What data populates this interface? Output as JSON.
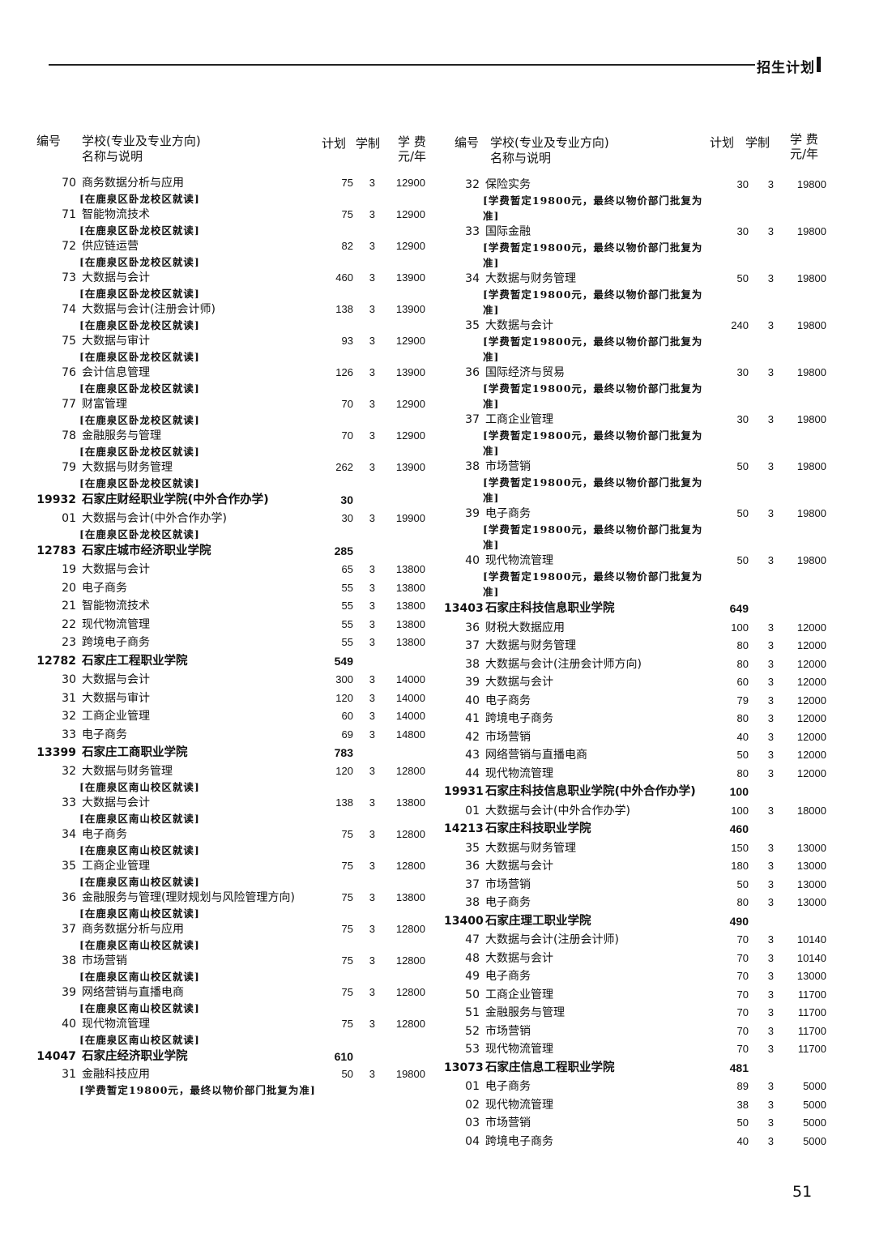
{
  "header": {
    "section_title": "招生计划"
  },
  "columns": {
    "code": "编号",
    "name_line1": "学校(专业及专业方向)",
    "name_line2": "名称与说明",
    "plan": "计划",
    "years": "学制",
    "fee_line1": "学 费",
    "fee_line2": "元/年"
  },
  "left_rows": [
    {
      "type": "item",
      "code": "70",
      "name": "商务数据分析与应用",
      "note": "[在鹿泉区卧龙校区就读]",
      "plan": "75",
      "years": "3",
      "fee": "12900"
    },
    {
      "type": "item",
      "code": "71",
      "name": "智能物流技术",
      "note": "[在鹿泉区卧龙校区就读]",
      "plan": "75",
      "years": "3",
      "fee": "12900"
    },
    {
      "type": "item",
      "code": "72",
      "name": "供应链运营",
      "note": "[在鹿泉区卧龙校区就读]",
      "plan": "82",
      "years": "3",
      "fee": "12900"
    },
    {
      "type": "item",
      "code": "73",
      "name": "大数据与会计",
      "note": "[在鹿泉区卧龙校区就读]",
      "plan": "460",
      "years": "3",
      "fee": "13900"
    },
    {
      "type": "item",
      "code": "74",
      "name": "大数据与会计(注册会计师)",
      "note": "[在鹿泉区卧龙校区就读]",
      "plan": "138",
      "years": "3",
      "fee": "13900"
    },
    {
      "type": "item",
      "code": "75",
      "name": "大数据与审计",
      "note": "[在鹿泉区卧龙校区就读]",
      "plan": "93",
      "years": "3",
      "fee": "12900"
    },
    {
      "type": "item",
      "code": "76",
      "name": "会计信息管理",
      "note": "[在鹿泉区卧龙校区就读]",
      "plan": "126",
      "years": "3",
      "fee": "13900"
    },
    {
      "type": "item",
      "code": "77",
      "name": "财富管理",
      "note": "[在鹿泉区卧龙校区就读]",
      "plan": "70",
      "years": "3",
      "fee": "12900"
    },
    {
      "type": "item",
      "code": "78",
      "name": "金融服务与管理",
      "note": "[在鹿泉区卧龙校区就读]",
      "plan": "70",
      "years": "3",
      "fee": "12900"
    },
    {
      "type": "item",
      "code": "79",
      "name": "大数据与财务管理",
      "note": "[在鹿泉区卧龙校区就读]",
      "plan": "262",
      "years": "3",
      "fee": "13900"
    },
    {
      "type": "school",
      "code": "19932",
      "name": "石家庄财经职业学院(中外合作办学)",
      "plan": "30"
    },
    {
      "type": "item",
      "code": "01",
      "name": "大数据与会计(中外合作办学)",
      "note": "[在鹿泉区卧龙校区就读]",
      "plan": "30",
      "years": "3",
      "fee": "19900"
    },
    {
      "type": "school",
      "code": "12783",
      "name": "石家庄城市经济职业学院",
      "plan": "285"
    },
    {
      "type": "item",
      "code": "19",
      "name": "大数据与会计",
      "plan": "65",
      "years": "3",
      "fee": "13800"
    },
    {
      "type": "item",
      "code": "20",
      "name": "电子商务",
      "plan": "55",
      "years": "3",
      "fee": "13800"
    },
    {
      "type": "item",
      "code": "21",
      "name": "智能物流技术",
      "plan": "55",
      "years": "3",
      "fee": "13800"
    },
    {
      "type": "item",
      "code": "22",
      "name": "现代物流管理",
      "plan": "55",
      "years": "3",
      "fee": "13800"
    },
    {
      "type": "item",
      "code": "23",
      "name": "跨境电子商务",
      "plan": "55",
      "years": "3",
      "fee": "13800"
    },
    {
      "type": "school",
      "code": "12782",
      "name": "石家庄工程职业学院",
      "plan": "549"
    },
    {
      "type": "item",
      "code": "30",
      "name": "大数据与会计",
      "plan": "300",
      "years": "3",
      "fee": "14000"
    },
    {
      "type": "item",
      "code": "31",
      "name": "大数据与审计",
      "plan": "120",
      "years": "3",
      "fee": "14000"
    },
    {
      "type": "item",
      "code": "32",
      "name": "工商企业管理",
      "plan": "60",
      "years": "3",
      "fee": "14000"
    },
    {
      "type": "item",
      "code": "33",
      "name": "电子商务",
      "plan": "69",
      "years": "3",
      "fee": "14800"
    },
    {
      "type": "school",
      "code": "13399",
      "name": "石家庄工商职业学院",
      "plan": "783"
    },
    {
      "type": "item",
      "code": "32",
      "name": "大数据与财务管理",
      "note": "[在鹿泉区南山校区就读]",
      "plan": "120",
      "years": "3",
      "fee": "12800"
    },
    {
      "type": "item",
      "code": "33",
      "name": "大数据与会计",
      "note": "[在鹿泉区南山校区就读]",
      "plan": "138",
      "years": "3",
      "fee": "13800"
    },
    {
      "type": "item",
      "code": "34",
      "name": "电子商务",
      "note": "[在鹿泉区南山校区就读]",
      "plan": "75",
      "years": "3",
      "fee": "12800"
    },
    {
      "type": "item",
      "code": "35",
      "name": "工商企业管理",
      "note": "[在鹿泉区南山校区就读]",
      "plan": "75",
      "years": "3",
      "fee": "12800"
    },
    {
      "type": "item",
      "code": "36",
      "name": "金融服务与管理(理财规划与风险管理方向)",
      "note": "[在鹿泉区南山校区就读]",
      "plan": "75",
      "years": "3",
      "fee": "13800"
    },
    {
      "type": "item",
      "code": "37",
      "name": "商务数据分析与应用",
      "note": "[在鹿泉区南山校区就读]",
      "plan": "75",
      "years": "3",
      "fee": "12800"
    },
    {
      "type": "item",
      "code": "38",
      "name": "市场营销",
      "note": "[在鹿泉区南山校区就读]",
      "plan": "75",
      "years": "3",
      "fee": "12800"
    },
    {
      "type": "item",
      "code": "39",
      "name": "网络营销与直播电商",
      "note": "[在鹿泉区南山校区就读]",
      "plan": "75",
      "years": "3",
      "fee": "12800"
    },
    {
      "type": "item",
      "code": "40",
      "name": "现代物流管理",
      "note": "[在鹿泉区南山校区就读]",
      "plan": "75",
      "years": "3",
      "fee": "12800"
    },
    {
      "type": "school",
      "code": "14047",
      "name": "石家庄经济职业学院",
      "plan": "610"
    },
    {
      "type": "item",
      "code": "31",
      "name": "金融科技应用",
      "note": "[学费暂定19800元，最终以物价部门批复为准]",
      "plan": "50",
      "years": "3",
      "fee": "19800"
    }
  ],
  "right_rows": [
    {
      "type": "item",
      "code": "32",
      "name": "保险实务",
      "note": "[学费暂定19800元，最终以物价部门批复为准]",
      "plan": "30",
      "years": "3",
      "fee": "19800"
    },
    {
      "type": "item",
      "code": "33",
      "name": "国际金融",
      "note": "[学费暂定19800元，最终以物价部门批复为准]",
      "plan": "30",
      "years": "3",
      "fee": "19800"
    },
    {
      "type": "item",
      "code": "34",
      "name": "大数据与财务管理",
      "note": "[学费暂定19800元，最终以物价部门批复为准]",
      "plan": "50",
      "years": "3",
      "fee": "19800"
    },
    {
      "type": "item",
      "code": "35",
      "name": "大数据与会计",
      "note": "[学费暂定19800元，最终以物价部门批复为准]",
      "plan": "240",
      "years": "3",
      "fee": "19800"
    },
    {
      "type": "item",
      "code": "36",
      "name": "国际经济与贸易",
      "note": "[学费暂定19800元，最终以物价部门批复为准]",
      "plan": "30",
      "years": "3",
      "fee": "19800"
    },
    {
      "type": "item",
      "code": "37",
      "name": "工商企业管理",
      "note": "[学费暂定19800元，最终以物价部门批复为准]",
      "plan": "30",
      "years": "3",
      "fee": "19800"
    },
    {
      "type": "item",
      "code": "38",
      "name": "市场营销",
      "note": "[学费暂定19800元，最终以物价部门批复为准]",
      "plan": "50",
      "years": "3",
      "fee": "19800"
    },
    {
      "type": "item",
      "code": "39",
      "name": "电子商务",
      "note": "[学费暂定19800元，最终以物价部门批复为准]",
      "plan": "50",
      "years": "3",
      "fee": "19800"
    },
    {
      "type": "item",
      "code": "40",
      "name": "现代物流管理",
      "note": "[学费暂定19800元，最终以物价部门批复为准]",
      "plan": "50",
      "years": "3",
      "fee": "19800"
    },
    {
      "type": "school",
      "code": "13403",
      "name": "石家庄科技信息职业学院",
      "plan": "649"
    },
    {
      "type": "item",
      "code": "36",
      "name": "财税大数据应用",
      "plan": "100",
      "years": "3",
      "fee": "12000"
    },
    {
      "type": "item",
      "code": "37",
      "name": "大数据与财务管理",
      "plan": "80",
      "years": "3",
      "fee": "12000"
    },
    {
      "type": "item",
      "code": "38",
      "name": "大数据与会计(注册会计师方向)",
      "plan": "80",
      "years": "3",
      "fee": "12000"
    },
    {
      "type": "item",
      "code": "39",
      "name": "大数据与会计",
      "plan": "60",
      "years": "3",
      "fee": "12000"
    },
    {
      "type": "item",
      "code": "40",
      "name": "电子商务",
      "plan": "79",
      "years": "3",
      "fee": "12000"
    },
    {
      "type": "item",
      "code": "41",
      "name": "跨境电子商务",
      "plan": "80",
      "years": "3",
      "fee": "12000"
    },
    {
      "type": "item",
      "code": "42",
      "name": "市场营销",
      "plan": "40",
      "years": "3",
      "fee": "12000"
    },
    {
      "type": "item",
      "code": "43",
      "name": "网络营销与直播电商",
      "plan": "50",
      "years": "3",
      "fee": "12000"
    },
    {
      "type": "item",
      "code": "44",
      "name": "现代物流管理",
      "plan": "80",
      "years": "3",
      "fee": "12000"
    },
    {
      "type": "school",
      "code": "19931",
      "name": "石家庄科技信息职业学院(中外合作办学)",
      "plan": "100"
    },
    {
      "type": "item",
      "code": "01",
      "name": "大数据与会计(中外合作办学)",
      "plan": "100",
      "years": "3",
      "fee": "18000"
    },
    {
      "type": "school",
      "code": "14213",
      "name": "石家庄科技职业学院",
      "plan": "460"
    },
    {
      "type": "item",
      "code": "35",
      "name": "大数据与财务管理",
      "plan": "150",
      "years": "3",
      "fee": "13000"
    },
    {
      "type": "item",
      "code": "36",
      "name": "大数据与会计",
      "plan": "180",
      "years": "3",
      "fee": "13000"
    },
    {
      "type": "item",
      "code": "37",
      "name": "市场营销",
      "plan": "50",
      "years": "3",
      "fee": "13000"
    },
    {
      "type": "item",
      "code": "38",
      "name": "电子商务",
      "plan": "80",
      "years": "3",
      "fee": "13000"
    },
    {
      "type": "school",
      "code": "13400",
      "name": "石家庄理工职业学院",
      "plan": "490"
    },
    {
      "type": "item",
      "code": "47",
      "name": "大数据与会计(注册会计师)",
      "plan": "70",
      "years": "3",
      "fee": "10140"
    },
    {
      "type": "item",
      "code": "48",
      "name": "大数据与会计",
      "plan": "70",
      "years": "3",
      "fee": "10140"
    },
    {
      "type": "item",
      "code": "49",
      "name": "电子商务",
      "plan": "70",
      "years": "3",
      "fee": "13000"
    },
    {
      "type": "item",
      "code": "50",
      "name": "工商企业管理",
      "plan": "70",
      "years": "3",
      "fee": "11700"
    },
    {
      "type": "item",
      "code": "51",
      "name": "金融服务与管理",
      "plan": "70",
      "years": "3",
      "fee": "11700"
    },
    {
      "type": "item",
      "code": "52",
      "name": "市场营销",
      "plan": "70",
      "years": "3",
      "fee": "11700"
    },
    {
      "type": "item",
      "code": "53",
      "name": "现代物流管理",
      "plan": "70",
      "years": "3",
      "fee": "11700"
    },
    {
      "type": "school",
      "code": "13073",
      "name": "石家庄信息工程职业学院",
      "plan": "481"
    },
    {
      "type": "item",
      "code": "01",
      "name": "电子商务",
      "plan": "89",
      "years": "3",
      "fee": "5000"
    },
    {
      "type": "item",
      "code": "02",
      "name": "现代物流管理",
      "plan": "38",
      "years": "3",
      "fee": "5000"
    },
    {
      "type": "item",
      "code": "03",
      "name": "市场营销",
      "plan": "50",
      "years": "3",
      "fee": "5000"
    },
    {
      "type": "item",
      "code": "04",
      "name": "跨境电子商务",
      "plan": "40",
      "years": "3",
      "fee": "5000"
    }
  ],
  "page_number": "51"
}
